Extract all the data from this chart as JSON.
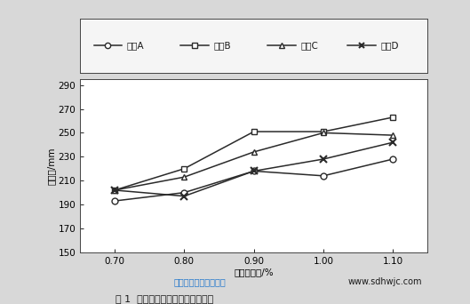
{
  "x": [
    0.7,
    0.8,
    0.9,
    1.0,
    1.1
  ],
  "series_A": [
    193,
    200,
    218,
    214,
    228
  ],
  "series_B": [
    202,
    220,
    251,
    251,
    263
  ],
  "series_C": [
    202,
    213,
    234,
    250,
    248
  ],
  "series_D": [
    202,
    197,
    218,
    228,
    242
  ],
  "ylabel": "流动度/mm",
  "xlabel": "外加剂掺量/%",
  "ylim": [
    150,
    295
  ],
  "yticks": [
    150,
    170,
    190,
    210,
    230,
    250,
    270,
    290
  ],
  "xticks": [
    0.7,
    0.8,
    0.9,
    1.0,
    1.1
  ],
  "figure_caption": "图 1  聚缧酸与水泥净浆流动度试验",
  "watermark_cn": "华伟銀凯混凝土外加剂",
  "watermark_url": "www.sdhwjc.com",
  "legend_labels": [
    "聚酸A",
    "聚酸B",
    "聚酸C",
    "聚酸D"
  ],
  "line_color": "#2a2a2a",
  "bg_color": "#d8d8d8",
  "plot_bg": "#ffffff",
  "legend_bg": "#f5f5f5"
}
